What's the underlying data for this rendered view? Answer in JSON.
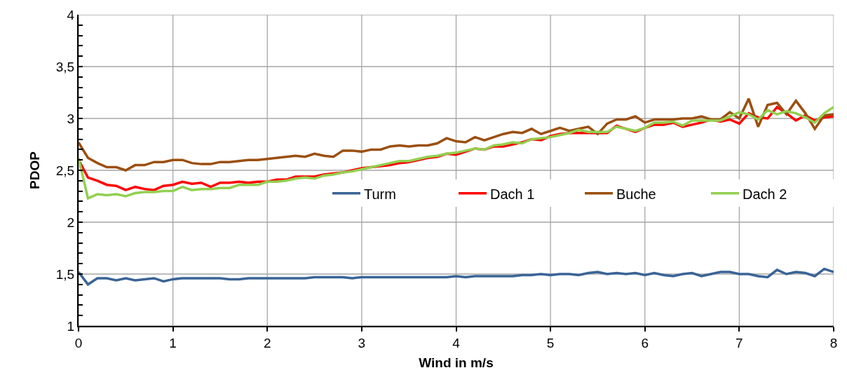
{
  "chart_data": {
    "type": "line",
    "xlabel": "Wind in m/s",
    "ylabel": "PDOP",
    "x": [
      0,
      0.1,
      0.2,
      0.3,
      0.4,
      0.5,
      0.6,
      0.7,
      0.8,
      0.9,
      1,
      1.1,
      1.2,
      1.3,
      1.4,
      1.5,
      1.6,
      1.7,
      1.8,
      1.9,
      2,
      2.1,
      2.2,
      2.3,
      2.4,
      2.5,
      2.6,
      2.7,
      2.8,
      2.9,
      3,
      3.1,
      3.2,
      3.3,
      3.4,
      3.5,
      3.6,
      3.7,
      3.8,
      3.9,
      4,
      4.1,
      4.2,
      4.3,
      4.4,
      4.5,
      4.6,
      4.7,
      4.8,
      4.9,
      5,
      5.1,
      5.2,
      5.3,
      5.4,
      5.5,
      5.6,
      5.7,
      5.8,
      5.9,
      6,
      6.1,
      6.2,
      6.3,
      6.4,
      6.5,
      6.6,
      6.7,
      6.8,
      6.9,
      7,
      7.1,
      7.2,
      7.3,
      7.4,
      7.5,
      7.6,
      7.7,
      7.8,
      7.9,
      8
    ],
    "series": [
      {
        "name": "Turm",
        "color": "#3a6496",
        "values": [
          1.52,
          1.4,
          1.46,
          1.46,
          1.44,
          1.46,
          1.44,
          1.45,
          1.46,
          1.43,
          1.45,
          1.46,
          1.46,
          1.46,
          1.46,
          1.46,
          1.45,
          1.45,
          1.46,
          1.46,
          1.46,
          1.46,
          1.46,
          1.46,
          1.46,
          1.47,
          1.47,
          1.47,
          1.47,
          1.46,
          1.47,
          1.47,
          1.47,
          1.47,
          1.47,
          1.47,
          1.47,
          1.47,
          1.47,
          1.47,
          1.48,
          1.47,
          1.48,
          1.48,
          1.48,
          1.48,
          1.48,
          1.49,
          1.49,
          1.5,
          1.49,
          1.5,
          1.5,
          1.49,
          1.51,
          1.52,
          1.5,
          1.51,
          1.5,
          1.51,
          1.49,
          1.51,
          1.49,
          1.48,
          1.5,
          1.51,
          1.48,
          1.5,
          1.52,
          1.52,
          1.5,
          1.5,
          1.48,
          1.47,
          1.54,
          1.5,
          1.52,
          1.51,
          1.48,
          1.55,
          1.52
        ]
      },
      {
        "name": "Dach 1",
        "color": "#ff0000",
        "values": [
          2.6,
          2.43,
          2.4,
          2.36,
          2.35,
          2.31,
          2.34,
          2.32,
          2.31,
          2.35,
          2.36,
          2.39,
          2.37,
          2.38,
          2.34,
          2.38,
          2.38,
          2.39,
          2.38,
          2.39,
          2.39,
          2.41,
          2.41,
          2.44,
          2.44,
          2.44,
          2.46,
          2.47,
          2.48,
          2.5,
          2.52,
          2.53,
          2.54,
          2.55,
          2.57,
          2.58,
          2.6,
          2.62,
          2.63,
          2.66,
          2.65,
          2.68,
          2.71,
          2.7,
          2.73,
          2.73,
          2.75,
          2.77,
          2.8,
          2.79,
          2.83,
          2.85,
          2.86,
          2.86,
          2.86,
          2.86,
          2.86,
          2.93,
          2.9,
          2.87,
          2.91,
          2.94,
          2.94,
          2.96,
          2.92,
          2.94,
          2.96,
          2.99,
          2.97,
          2.99,
          2.95,
          3.05,
          3.01,
          3.0,
          3.11,
          3.05,
          2.98,
          3.03,
          2.98,
          3.01,
          3.02
        ]
      },
      {
        "name": "Buche",
        "color": "#9b4f0f",
        "values": [
          2.77,
          2.62,
          2.57,
          2.53,
          2.53,
          2.5,
          2.55,
          2.55,
          2.58,
          2.58,
          2.6,
          2.6,
          2.57,
          2.56,
          2.56,
          2.58,
          2.58,
          2.59,
          2.6,
          2.6,
          2.61,
          2.62,
          2.63,
          2.64,
          2.63,
          2.66,
          2.64,
          2.63,
          2.69,
          2.69,
          2.68,
          2.7,
          2.7,
          2.73,
          2.74,
          2.73,
          2.74,
          2.74,
          2.76,
          2.81,
          2.78,
          2.77,
          2.82,
          2.79,
          2.82,
          2.85,
          2.87,
          2.86,
          2.9,
          2.85,
          2.88,
          2.91,
          2.88,
          2.9,
          2.92,
          2.85,
          2.95,
          2.99,
          2.99,
          3.02,
          2.96,
          2.99,
          2.99,
          2.99,
          3.0,
          3.0,
          3.02,
          2.99,
          2.99,
          3.06,
          3.0,
          3.19,
          2.92,
          3.13,
          3.15,
          3.04,
          3.17,
          3.05,
          2.9,
          3.03,
          3.04
        ]
      },
      {
        "name": "Dach 2",
        "color": "#92d050",
        "values": [
          2.62,
          2.23,
          2.27,
          2.26,
          2.27,
          2.25,
          2.28,
          2.29,
          2.29,
          2.3,
          2.3,
          2.34,
          2.31,
          2.32,
          2.32,
          2.33,
          2.33,
          2.36,
          2.36,
          2.36,
          2.39,
          2.39,
          2.4,
          2.42,
          2.43,
          2.42,
          2.45,
          2.46,
          2.48,
          2.49,
          2.51,
          2.53,
          2.55,
          2.57,
          2.59,
          2.59,
          2.61,
          2.63,
          2.64,
          2.66,
          2.67,
          2.69,
          2.71,
          2.7,
          2.74,
          2.75,
          2.77,
          2.76,
          2.8,
          2.81,
          2.82,
          2.84,
          2.86,
          2.89,
          2.87,
          2.87,
          2.87,
          2.92,
          2.9,
          2.88,
          2.91,
          2.96,
          2.96,
          2.97,
          2.93,
          2.98,
          2.98,
          2.98,
          2.98,
          3.02,
          3.06,
          3.04,
          2.99,
          3.08,
          3.04,
          3.07,
          3.05,
          3.01,
          2.96,
          3.05,
          3.11
        ]
      }
    ],
    "xlim": [
      0,
      8
    ],
    "xticks": [
      0,
      1,
      2,
      3,
      4,
      5,
      6,
      7,
      8
    ],
    "ylim": [
      1,
      4
    ],
    "yticks": [
      1,
      {
        "value": 1.1,
        "label": null
      },
      {
        "value": 1.2,
        "label": null
      },
      {
        "value": 1.3,
        "label": null
      },
      {
        "value": 1.4,
        "label": null
      },
      {
        "value": 1.5,
        "label": "1,5"
      },
      {
        "value": 1.6,
        "label": null
      },
      {
        "value": 1.7,
        "label": null
      },
      {
        "value": 1.8,
        "label": null
      },
      {
        "value": 1.9,
        "label": null
      },
      2,
      {
        "value": 2.1,
        "label": null
      },
      {
        "value": 2.2,
        "label": null
      },
      {
        "value": 2.3,
        "label": null
      },
      {
        "value": 2.4,
        "label": null
      },
      {
        "value": 2.5,
        "label": "2,5"
      },
      {
        "value": 2.6,
        "label": null
      },
      {
        "value": 2.7,
        "label": null
      },
      {
        "value": 2.8,
        "label": null
      },
      {
        "value": 2.9,
        "label": null
      },
      3,
      {
        "value": 3.1,
        "label": null
      },
      {
        "value": 3.2,
        "label": null
      },
      {
        "value": 3.3,
        "label": null
      },
      {
        "value": 3.4,
        "label": null
      },
      {
        "value": 3.5,
        "label": "3,5"
      },
      {
        "value": 3.6,
        "label": null
      },
      {
        "value": 3.7,
        "label": null
      },
      {
        "value": 3.8,
        "label": null
      },
      {
        "value": 3.9,
        "label": null
      },
      4
    ],
    "grid": true,
    "legend": "right",
    "marker": "none",
    "line_style": "solid"
  }
}
